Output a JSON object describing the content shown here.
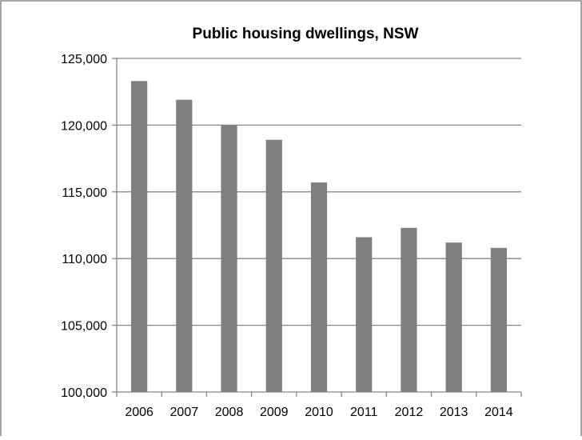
{
  "chart_data": {
    "type": "bar",
    "title": "Public housing dwellings, NSW",
    "xlabel": "",
    "ylabel": "",
    "categories": [
      "2006",
      "2007",
      "2008",
      "2009",
      "2010",
      "2011",
      "2012",
      "2013",
      "2014"
    ],
    "values": [
      123300,
      121900,
      120000,
      118900,
      115700,
      111600,
      112300,
      111200,
      110800
    ],
    "ylim": [
      100000,
      125000
    ],
    "yticks": [
      100000,
      105000,
      110000,
      115000,
      120000,
      125000
    ],
    "ytick_labels": [
      "100,000",
      "105,000",
      "110,000",
      "115,000",
      "120,000",
      "125,000"
    ],
    "grid": true,
    "legend": "none",
    "bar_color": "#7f7f7f",
    "grid_color": "#868686",
    "border_color": "#868686"
  }
}
